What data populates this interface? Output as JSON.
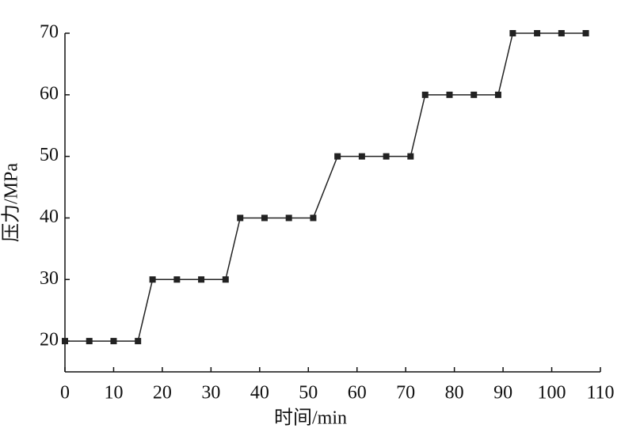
{
  "chart_data": {
    "type": "line",
    "x_label": "时间/min",
    "y_label": "压力/MPa",
    "x": [
      0,
      5,
      10,
      15,
      18,
      23,
      28,
      33,
      36,
      41,
      46,
      51,
      56,
      61,
      66,
      71,
      74,
      79,
      84,
      89,
      92,
      97,
      102,
      107
    ],
    "series": [
      {
        "name": "压力",
        "color": "#222222",
        "values": [
          20,
          20,
          20,
          20,
          30,
          30,
          30,
          30,
          40,
          40,
          40,
          40,
          50,
          50,
          50,
          50,
          60,
          60,
          60,
          60,
          70,
          70,
          70,
          70
        ]
      }
    ],
    "xlim": [
      0,
      110
    ],
    "xticks": [
      0,
      10,
      20,
      30,
      40,
      50,
      60,
      70,
      80,
      90,
      100,
      110
    ],
    "ylim": [
      15,
      70
    ],
    "yticks": [
      20,
      30,
      40,
      50,
      60,
      70
    ],
    "grid": false
  }
}
